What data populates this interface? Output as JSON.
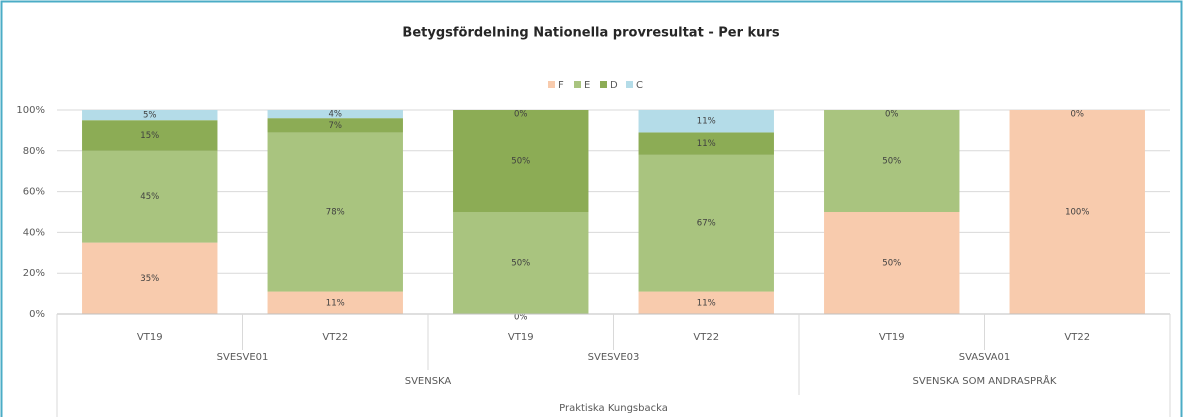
{
  "chart_data": {
    "type": "stacked_bar",
    "title": "Betygsfördelning Nationella provresultat - Per kurs",
    "categories": [
      "VT19",
      "VT22",
      "VT19",
      "VT22",
      "VT19",
      "VT22"
    ],
    "group_levels": [
      [
        "SVESVE01",
        null,
        "SVESVE03",
        null,
        "SVASVA01",
        null
      ],
      [
        "SVENSKA",
        null,
        null,
        null,
        "SVENSKA SOM ANDRASPRÅK",
        null
      ],
      [
        "Praktiska Kungsbacka",
        null,
        null,
        null,
        null,
        null
      ]
    ],
    "series": [
      {
        "name": "F",
        "color": "#f8cbad",
        "values": [
          35,
          11,
          0,
          11,
          50,
          100
        ],
        "value_labels": [
          "35%",
          "11%",
          "0%",
          "11%",
          "50%",
          "100%"
        ]
      },
      {
        "name": "E",
        "color": "#a9c47f",
        "values": [
          45,
          78,
          50,
          67,
          50,
          null
        ],
        "value_labels": [
          "45%",
          "78%",
          "50%",
          "67%",
          "50%",
          null
        ]
      },
      {
        "name": "D",
        "color": "#8cac55",
        "values": [
          15,
          7,
          50,
          11,
          null,
          null
        ],
        "value_labels": [
          "15%",
          "7%",
          "50%",
          "11%",
          null,
          null
        ]
      },
      {
        "name": "C",
        "color": "#b4dce8",
        "values": [
          5,
          4,
          0,
          11,
          0,
          0
        ],
        "value_labels": [
          "5%",
          "4%",
          "0%",
          "11%",
          "0%",
          "0%"
        ]
      }
    ],
    "ylim": [
      0,
      100
    ],
    "yticks": [
      {
        "value": 0,
        "label": "0%"
      },
      {
        "value": 20,
        "label": "20%"
      },
      {
        "value": 40,
        "label": "40%"
      },
      {
        "value": 60,
        "label": "60%"
      },
      {
        "value": 80,
        "label": "80%"
      },
      {
        "value": 100,
        "label": "100%"
      }
    ],
    "grid": true,
    "legend": "top"
  }
}
